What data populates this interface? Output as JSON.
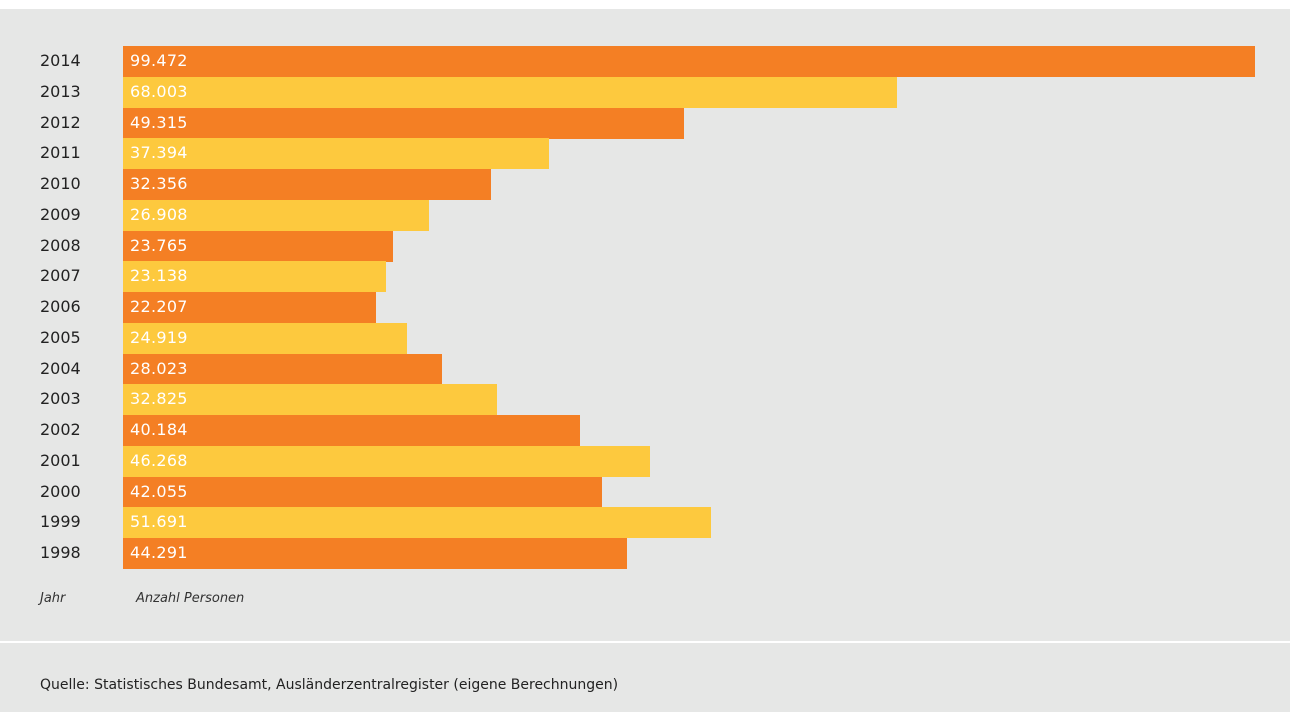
{
  "chart_data": {
    "type": "bar",
    "orientation": "horizontal",
    "categories": [
      "2014",
      "2013",
      "2012",
      "2011",
      "2010",
      "2009",
      "2008",
      "2007",
      "2006",
      "2005",
      "2004",
      "2003",
      "2002",
      "2001",
      "2000",
      "1999",
      "1998"
    ],
    "values": [
      99472,
      68003,
      49315,
      37394,
      32356,
      26908,
      23765,
      23138,
      22207,
      24919,
      28023,
      32825,
      40184,
      46268,
      42055,
      51691,
      44291
    ],
    "value_labels": [
      "99.472",
      "68.003",
      "49.315",
      "37.394",
      "32.356",
      "26.908",
      "23.765",
      "23.138",
      "22.207",
      "24.919",
      "28.023",
      "32.825",
      "40.184",
      "46.268",
      "42.055",
      "51.691",
      "44.291"
    ],
    "xlabel": "Anzahl Personen",
    "ylabel": "Jahr",
    "xlim": [
      0,
      99472
    ],
    "grid": false,
    "colors": [
      "#f47f24",
      "#fdc93e"
    ]
  },
  "source": "Quelle: Statistisches Bundesamt, Ausländerzentralregister (eigene Berechnungen)"
}
